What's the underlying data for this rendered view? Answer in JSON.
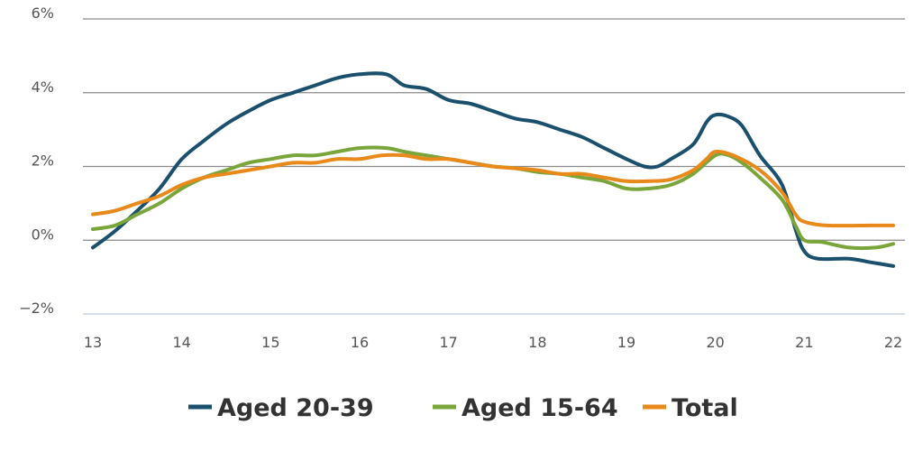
{
  "chart_data": {
    "type": "line",
    "title": "",
    "xlabel": "",
    "ylabel": "",
    "xlim": [
      13,
      22
    ],
    "ylim": [
      -2,
      6
    ],
    "x_ticks": [
      13,
      14,
      15,
      16,
      17,
      18,
      19,
      20,
      21,
      22
    ],
    "x_tick_labels": [
      "13",
      "14",
      "15",
      "16",
      "17",
      "18",
      "19",
      "20",
      "21",
      "22"
    ],
    "y_ticks": [
      -2,
      0,
      2,
      4,
      6
    ],
    "y_tick_labels": [
      "−2%",
      "0%",
      "2%",
      "4%",
      "6%"
    ],
    "grid": "horizontal",
    "legend_position": "bottom",
    "series": [
      {
        "name": "Aged 20-39",
        "color": "#1b4f6e",
        "points": [
          [
            13.0,
            -0.2
          ],
          [
            13.25,
            0.25
          ],
          [
            13.5,
            0.8
          ],
          [
            13.75,
            1.4
          ],
          [
            14.0,
            2.2
          ],
          [
            14.25,
            2.7
          ],
          [
            14.5,
            3.15
          ],
          [
            14.75,
            3.5
          ],
          [
            15.0,
            3.8
          ],
          [
            15.25,
            4.0
          ],
          [
            15.5,
            4.2
          ],
          [
            15.75,
            4.4
          ],
          [
            16.0,
            4.5
          ],
          [
            16.3,
            4.5
          ],
          [
            16.5,
            4.2
          ],
          [
            16.75,
            4.1
          ],
          [
            17.0,
            3.8
          ],
          [
            17.25,
            3.7
          ],
          [
            17.5,
            3.5
          ],
          [
            17.75,
            3.3
          ],
          [
            18.0,
            3.2
          ],
          [
            18.25,
            3.0
          ],
          [
            18.5,
            2.8
          ],
          [
            18.75,
            2.5
          ],
          [
            19.0,
            2.2
          ],
          [
            19.2,
            2.0
          ],
          [
            19.35,
            2.0
          ],
          [
            19.5,
            2.2
          ],
          [
            19.75,
            2.6
          ],
          [
            19.9,
            3.2
          ],
          [
            20.0,
            3.4
          ],
          [
            20.15,
            3.35
          ],
          [
            20.3,
            3.1
          ],
          [
            20.5,
            2.3
          ],
          [
            20.75,
            1.5
          ],
          [
            20.9,
            0.3
          ],
          [
            21.0,
            -0.3
          ],
          [
            21.15,
            -0.5
          ],
          [
            21.5,
            -0.5
          ],
          [
            21.75,
            -0.6
          ],
          [
            22.0,
            -0.7
          ]
        ]
      },
      {
        "name": "Aged 15-64",
        "color": "#7aa53a",
        "points": [
          [
            13.0,
            0.3
          ],
          [
            13.25,
            0.4
          ],
          [
            13.5,
            0.7
          ],
          [
            13.75,
            1.0
          ],
          [
            14.0,
            1.4
          ],
          [
            14.25,
            1.7
          ],
          [
            14.5,
            1.9
          ],
          [
            14.75,
            2.1
          ],
          [
            15.0,
            2.2
          ],
          [
            15.25,
            2.3
          ],
          [
            15.5,
            2.3
          ],
          [
            15.75,
            2.4
          ],
          [
            16.0,
            2.5
          ],
          [
            16.3,
            2.5
          ],
          [
            16.5,
            2.4
          ],
          [
            16.75,
            2.3
          ],
          [
            17.0,
            2.2
          ],
          [
            17.25,
            2.1
          ],
          [
            17.5,
            2.0
          ],
          [
            17.75,
            1.95
          ],
          [
            18.0,
            1.85
          ],
          [
            18.25,
            1.8
          ],
          [
            18.5,
            1.7
          ],
          [
            18.75,
            1.6
          ],
          [
            19.0,
            1.4
          ],
          [
            19.25,
            1.4
          ],
          [
            19.5,
            1.5
          ],
          [
            19.75,
            1.8
          ],
          [
            20.0,
            2.3
          ],
          [
            20.15,
            2.3
          ],
          [
            20.3,
            2.1
          ],
          [
            20.5,
            1.7
          ],
          [
            20.75,
            1.1
          ],
          [
            20.9,
            0.4
          ],
          [
            21.0,
            0.0
          ],
          [
            21.2,
            -0.05
          ],
          [
            21.5,
            -0.2
          ],
          [
            21.8,
            -0.2
          ],
          [
            22.0,
            -0.1
          ]
        ]
      },
      {
        "name": "Total",
        "color": "#e8891a",
        "points": [
          [
            13.0,
            0.7
          ],
          [
            13.25,
            0.8
          ],
          [
            13.5,
            1.0
          ],
          [
            13.75,
            1.2
          ],
          [
            14.0,
            1.5
          ],
          [
            14.25,
            1.7
          ],
          [
            14.5,
            1.8
          ],
          [
            14.75,
            1.9
          ],
          [
            15.0,
            2.0
          ],
          [
            15.25,
            2.1
          ],
          [
            15.5,
            2.1
          ],
          [
            15.75,
            2.2
          ],
          [
            16.0,
            2.2
          ],
          [
            16.25,
            2.3
          ],
          [
            16.5,
            2.3
          ],
          [
            16.75,
            2.2
          ],
          [
            17.0,
            2.2
          ],
          [
            17.25,
            2.1
          ],
          [
            17.5,
            2.0
          ],
          [
            17.75,
            1.95
          ],
          [
            18.0,
            1.9
          ],
          [
            18.25,
            1.8
          ],
          [
            18.5,
            1.8
          ],
          [
            18.75,
            1.7
          ],
          [
            19.0,
            1.6
          ],
          [
            19.25,
            1.6
          ],
          [
            19.5,
            1.65
          ],
          [
            19.75,
            1.9
          ],
          [
            19.9,
            2.2
          ],
          [
            20.0,
            2.4
          ],
          [
            20.2,
            2.3
          ],
          [
            20.5,
            1.9
          ],
          [
            20.75,
            1.3
          ],
          [
            20.9,
            0.7
          ],
          [
            21.0,
            0.5
          ],
          [
            21.25,
            0.4
          ],
          [
            21.75,
            0.4
          ],
          [
            22.0,
            0.4
          ]
        ]
      }
    ]
  }
}
